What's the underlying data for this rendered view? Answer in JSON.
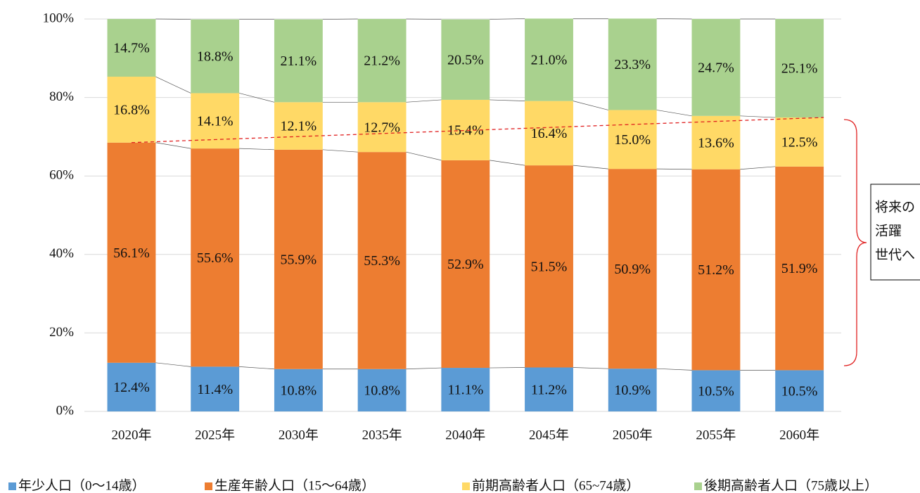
{
  "chart_data": {
    "type": "stacked_bar",
    "categories": [
      "2020年",
      "2025年",
      "2030年",
      "2035年",
      "2040年",
      "2045年",
      "2050年",
      "2055年",
      "2060年"
    ],
    "series": [
      {
        "name": "年少人口（0〜14歳）",
        "color": "#5b9bd5",
        "values": [
          12.4,
          11.4,
          10.8,
          10.8,
          11.1,
          11.2,
          10.9,
          10.5,
          10.5
        ],
        "value_labels": [
          "12.4%",
          "11.4%",
          "10.8%",
          "10.8%",
          "11.1%",
          "11.2%",
          "10.9%",
          "10.5%",
          "10.5%"
        ]
      },
      {
        "name": "生産年齢人口（15〜64歳）",
        "color": "#ed7d31",
        "values": [
          56.1,
          55.6,
          55.9,
          55.3,
          52.9,
          51.5,
          50.9,
          51.2,
          51.9
        ],
        "value_labels": [
          "56.1%",
          "55.6%",
          "55.9%",
          "55.3%",
          "52.9%",
          "51.5%",
          "50.9%",
          "51.2%",
          "51.9%"
        ]
      },
      {
        "name": "前期高齢者人口（65~74歳）",
        "color": "#ffd966",
        "values": [
          16.8,
          14.1,
          12.1,
          12.7,
          15.4,
          16.4,
          15.0,
          13.6,
          12.5
        ],
        "value_labels": [
          "16.8%",
          "14.1%",
          "12.1%",
          "12.7%",
          "15.4%",
          "16.4%",
          "15.0%",
          "13.6%",
          "12.5%"
        ]
      },
      {
        "name": "後期高齢者人口（75歳以上）",
        "color": "#a9d18e",
        "values": [
          14.7,
          18.8,
          21.1,
          21.2,
          20.5,
          21.0,
          23.3,
          24.7,
          25.1
        ],
        "value_labels": [
          "14.7%",
          "18.8%",
          "21.1%",
          "21.2%",
          "20.5%",
          "21.0%",
          "23.3%",
          "24.7%",
          "25.1%"
        ]
      }
    ],
    "ylim": [
      0,
      100
    ],
    "yticks": [
      {
        "value": 0,
        "label": "0%"
      },
      {
        "value": 20,
        "label": "20%"
      },
      {
        "value": 40,
        "label": "40%"
      },
      {
        "value": 60,
        "label": "60%"
      },
      {
        "value": 80,
        "label": "80%"
      },
      {
        "value": 100,
        "label": "100%"
      }
    ],
    "grid": true,
    "legend": "bottom",
    "annotation": [
      "将来の",
      "活躍",
      "世代へ"
    ]
  }
}
